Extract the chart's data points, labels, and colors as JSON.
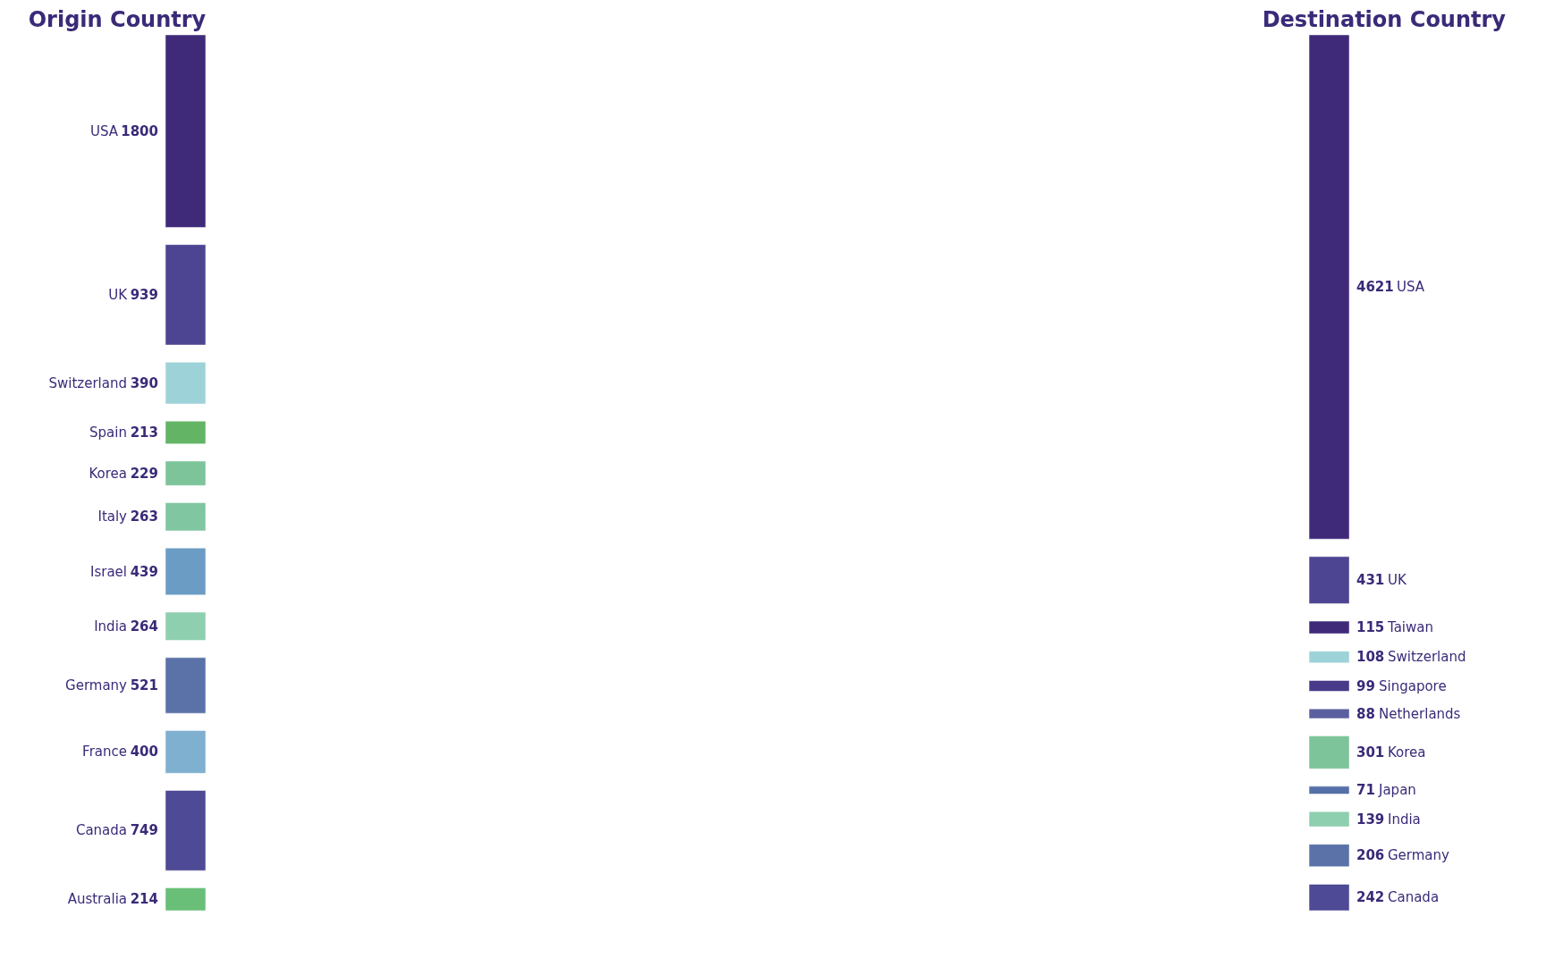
{
  "chart_data": [
    {
      "type": "other",
      "title": "Origin Country",
      "data_labels": true,
      "categories": [
        "USA",
        "UK",
        "Switzerland",
        "Spain",
        "Korea",
        "Italy",
        "Israel",
        "India",
        "Germany",
        "France",
        "Canada",
        "Australia"
      ],
      "values": [
        1800,
        939,
        390,
        213,
        229,
        263,
        439,
        264,
        521,
        400,
        749,
        214
      ],
      "colors": [
        "#3f2a7a",
        "#4d4592",
        "#9dd3d8",
        "#63b565",
        "#7dc49a",
        "#80c6a0",
        "#6b9cc4",
        "#8ecfb0",
        "#5b72a8",
        "#7fb0cf",
        "#4e4a95",
        "#6abf78"
      ]
    },
    {
      "type": "other",
      "title": "Destination Country",
      "data_labels": true,
      "categories": [
        "USA",
        "UK",
        "Taiwan",
        "Switzerland",
        "Singapore",
        "Netherlands",
        "Korea",
        "Japan",
        "India",
        "Germany",
        "Canada"
      ],
      "values": [
        4621,
        431,
        115,
        108,
        99,
        88,
        301,
        71,
        139,
        206,
        242
      ],
      "colors": [
        "#3f2a7a",
        "#4d4592",
        "#3f2a7a",
        "#9dd3d8",
        "#4a3a8a",
        "#5b5fa0",
        "#7dc49a",
        "#5570a8",
        "#8ecfb0",
        "#5b72a8",
        "#4e4a95"
      ]
    }
  ]
}
